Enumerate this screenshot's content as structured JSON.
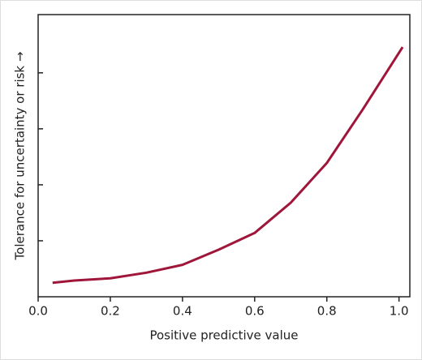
{
  "chart_data": {
    "type": "line",
    "x_label": "Positive predictive value",
    "y_label": "Tolerance for uncertainty or risk →",
    "x": [
      0.04,
      0.1,
      0.2,
      0.3,
      0.4,
      0.5,
      0.6,
      0.7,
      0.8,
      0.9,
      1.01
    ],
    "values": [
      0.25,
      0.29,
      0.33,
      0.43,
      0.57,
      0.84,
      1.14,
      1.68,
      2.39,
      3.35,
      4.46
    ],
    "color": "#a0163a",
    "xlim": [
      0,
      1.03
    ],
    "xticks": [
      {
        "value": 0,
        "label": "0.0"
      },
      0.2,
      0.4,
      0.6,
      0.8,
      {
        "value": 1,
        "label": "1.0"
      }
    ],
    "ylim": [
      0,
      5.04
    ],
    "yticks": [
      1,
      2,
      3,
      4
    ]
  }
}
